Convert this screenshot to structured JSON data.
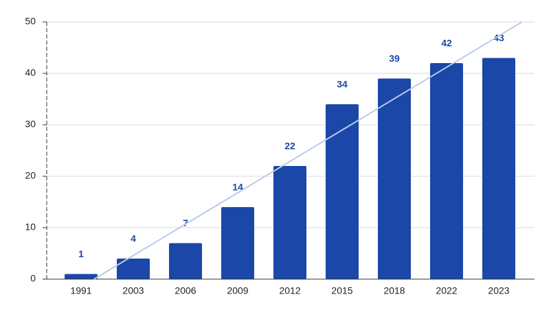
{
  "chart_data": {
    "type": "bar",
    "categories": [
      "1991",
      "2003",
      "2006",
      "2009",
      "2012",
      "2015",
      "2018",
      "2022",
      "2023"
    ],
    "values": [
      1,
      4,
      7,
      14,
      22,
      34,
      39,
      42,
      43
    ],
    "color": "#1a47a8",
    "label_color": "#1a47a8",
    "trendline": true,
    "trendline_color": "#b9cbe8",
    "ylim": [
      0,
      50
    ],
    "yticks": [
      0,
      10,
      20,
      30,
      40,
      50
    ],
    "grid": true
  }
}
